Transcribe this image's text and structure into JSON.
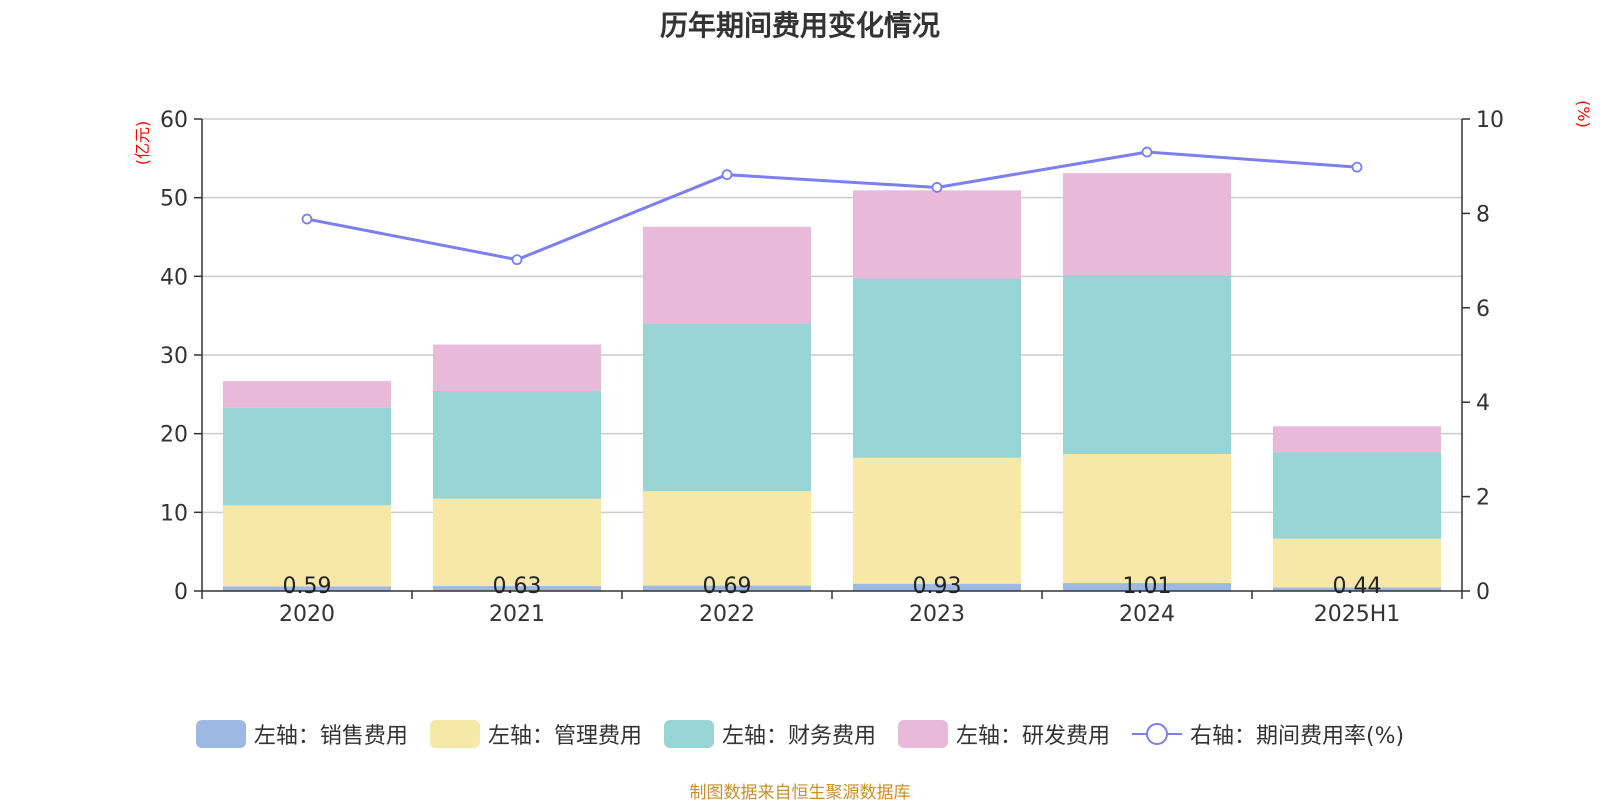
{
  "title": "历年期间费用变化情况",
  "source_note": "制图数据来自恒生聚源数据库",
  "chart_data": {
    "type": "bar",
    "stacked": true,
    "categories": [
      "2020",
      "2021",
      "2022",
      "2023",
      "2024",
      "2025H1"
    ],
    "left_axis": {
      "unit": "(亿元)",
      "ylim": [
        0,
        60
      ],
      "ticks": [
        "0",
        "10",
        "20",
        "30",
        "40",
        "50",
        "60"
      ]
    },
    "right_axis": {
      "unit": "(%)",
      "ylim": [
        0,
        10
      ],
      "ticks": [
        "0",
        "2",
        "4",
        "6",
        "8",
        "10"
      ]
    },
    "grid": true,
    "legend_position": "bottom",
    "series": [
      {
        "name": "左轴：销售费用",
        "axis": "left",
        "type": "bar",
        "color": "#9db8e3",
        "values": [
          0.59,
          0.63,
          0.69,
          0.93,
          1.01,
          0.44
        ],
        "labels": [
          "0.59",
          "0.63",
          "0.69",
          "0.93",
          "1.01",
          "0.44"
        ]
      },
      {
        "name": "左轴：管理费用",
        "axis": "left",
        "type": "bar",
        "color": "#f8e8a8",
        "values": [
          10.3,
          11.1,
          12.0,
          16.0,
          16.4,
          6.2
        ]
      },
      {
        "name": "左轴：财务费用",
        "axis": "left",
        "type": "bar",
        "color": "#98d4d4",
        "values": [
          12.4,
          13.7,
          21.3,
          22.8,
          22.7,
          11.0
        ]
      },
      {
        "name": "左轴：研发费用",
        "axis": "left",
        "type": "bar",
        "color": "#e8b9d9",
        "values": [
          3.4,
          5.9,
          12.3,
          11.2,
          13.0,
          3.3
        ]
      },
      {
        "name": "右轴：期间费用率(%)",
        "axis": "right",
        "type": "line",
        "color": "#7b7ff0",
        "values": [
          7.88,
          7.02,
          8.82,
          8.55,
          9.3,
          8.98
        ]
      }
    ]
  }
}
